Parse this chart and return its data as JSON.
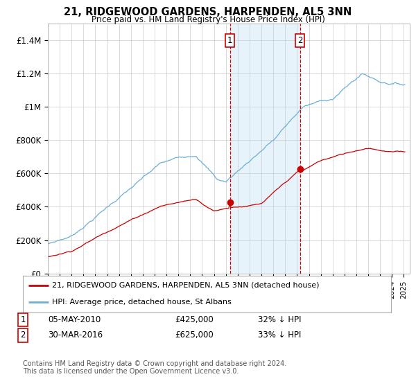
{
  "title": "21, RIDGEWOOD GARDENS, HARPENDEN, AL5 3NN",
  "subtitle": "Price paid vs. HM Land Registry's House Price Index (HPI)",
  "ylabel_ticks": [
    "£0",
    "£200K",
    "£400K",
    "£600K",
    "£800K",
    "£1M",
    "£1.2M",
    "£1.4M"
  ],
  "ytick_values": [
    0,
    200000,
    400000,
    600000,
    800000,
    1000000,
    1200000,
    1400000
  ],
  "ylim": [
    0,
    1500000
  ],
  "xlim_start": 1995.0,
  "xlim_end": 2025.5,
  "hpi_color": "#6baed6",
  "price_color": "#cc0000",
  "sale1_x": 2010.35,
  "sale1_y": 425000,
  "sale2_x": 2016.25,
  "sale2_y": 625000,
  "legend_label1": "21, RIDGEWOOD GARDENS, HARPENDEN, AL5 3NN (detached house)",
  "legend_label2": "HPI: Average price, detached house, St Albans",
  "footnote": "Contains HM Land Registry data © Crown copyright and database right 2024.\nThis data is licensed under the Open Government Licence v3.0.",
  "background_color": "#ffffff",
  "grid_color": "#cccccc"
}
